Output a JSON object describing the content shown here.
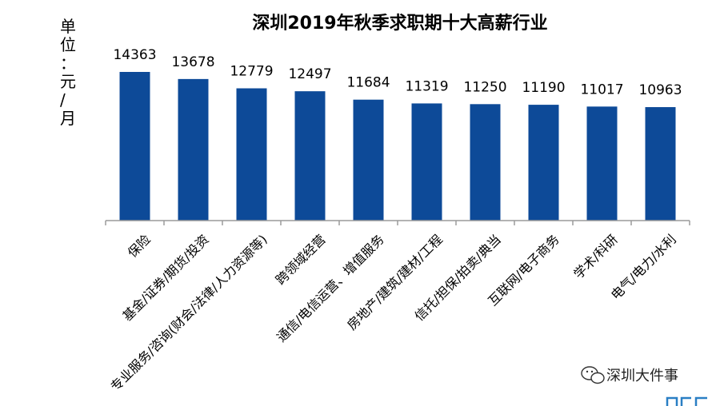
{
  "chart_data": {
    "type": "bar",
    "title": "深圳2019年秋季求职期十大高薪行业",
    "ylabel": "单位：元/月",
    "xlabel": "",
    "categories": [
      "保险",
      "基金/证券/期货/投资",
      "专业服务/咨询(财会/法律/人力资源等)",
      "跨领域经营",
      "通信/电信运营、增值服务",
      "房地产/建筑/建材/工程",
      "信托/担保/拍卖/典当",
      "互联网/电子商务",
      "学术/科研",
      "电气/电力/水利"
    ],
    "values": [
      14363,
      13678,
      12779,
      12497,
      11684,
      11319,
      11250,
      11190,
      11017,
      10963
    ],
    "ylim": [
      0,
      15000
    ],
    "bar_color": "#0d4a98",
    "grid": false,
    "legend": "none"
  },
  "watermark": {
    "text": "深圳大件事",
    "icon": "wechat-icon"
  }
}
